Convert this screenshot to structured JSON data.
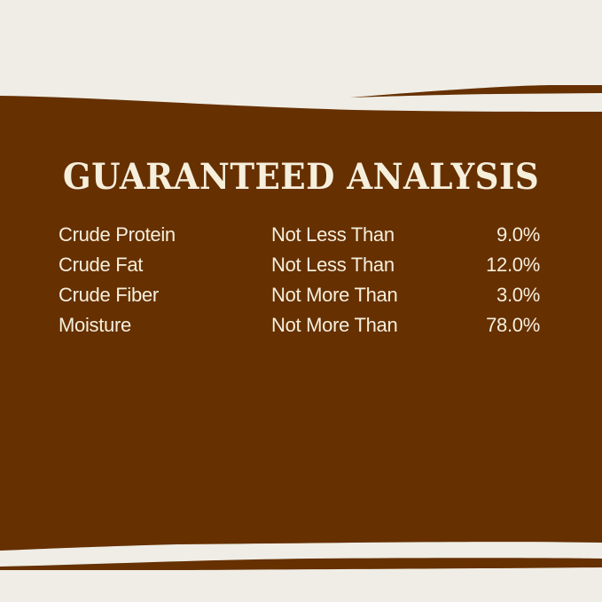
{
  "colors": {
    "background": "#efede6",
    "band": "#663000",
    "text": "#f6efdc"
  },
  "title": "GUARANTEED ANALYSIS",
  "rows": [
    {
      "nutrient": "Crude Protein",
      "qualifier": "Not Less Than",
      "value": "9.0%"
    },
    {
      "nutrient": "Crude Fat",
      "qualifier": "Not Less Than",
      "value": "12.0%"
    },
    {
      "nutrient": "Crude Fiber",
      "qualifier": "Not More Than",
      "value": "3.0%"
    },
    {
      "nutrient": "Moisture",
      "qualifier": "Not More Than",
      "value": "78.0%"
    }
  ]
}
